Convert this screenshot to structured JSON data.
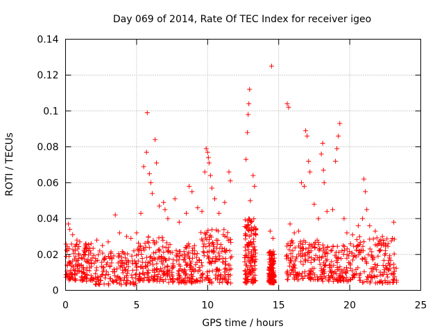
{
  "chart_data": {
    "type": "scatter",
    "title": "Day 069 of 2014, Rate Of TEC Index for receiver igeo",
    "xlabel": "GPS time / hours",
    "ylabel": "ROTI / TECUs",
    "xlim": [
      0,
      25
    ],
    "ylim": [
      0,
      0.14
    ],
    "xticks": [
      0,
      5,
      10,
      15,
      20,
      25
    ],
    "yticks": [
      0,
      0.02,
      0.04,
      0.06,
      0.08,
      0.1,
      0.12,
      0.14
    ],
    "xtick_labels": [
      "0",
      "5",
      "10",
      "15",
      "20",
      "25"
    ],
    "ytick_labels": [
      "0",
      "0.02",
      "0.04",
      "0.06",
      "0.08",
      "0.1",
      "0.12",
      "0.14"
    ],
    "grid": true,
    "marker": "+",
    "color": "#ff0000",
    "series": [
      {
        "name": "ROTI",
        "points": [
          [
            0.2,
            0.037
          ],
          [
            0.3,
            0.034
          ],
          [
            0.5,
            0.031
          ],
          [
            0.8,
            0.028
          ],
          [
            1.0,
            0.027
          ],
          [
            1.4,
            0.025
          ],
          [
            1.8,
            0.026
          ],
          [
            2.2,
            0.028
          ],
          [
            2.6,
            0.025
          ],
          [
            3.0,
            0.027
          ],
          [
            3.5,
            0.042
          ],
          [
            3.8,
            0.032
          ],
          [
            4.3,
            0.03
          ],
          [
            4.6,
            0.029
          ],
          [
            5.0,
            0.032
          ],
          [
            5.3,
            0.043
          ],
          [
            5.5,
            0.069
          ],
          [
            5.7,
            0.077
          ],
          [
            5.75,
            0.099
          ],
          [
            5.9,
            0.065
          ],
          [
            6.0,
            0.06
          ],
          [
            6.1,
            0.054
          ],
          [
            6.3,
            0.084
          ],
          [
            6.4,
            0.071
          ],
          [
            6.6,
            0.047
          ],
          [
            6.9,
            0.049
          ],
          [
            7.0,
            0.045
          ],
          [
            7.2,
            0.04
          ],
          [
            7.7,
            0.051
          ],
          [
            8.0,
            0.038
          ],
          [
            8.5,
            0.043
          ],
          [
            8.7,
            0.058
          ],
          [
            8.9,
            0.055
          ],
          [
            9.3,
            0.046
          ],
          [
            9.6,
            0.044
          ],
          [
            9.8,
            0.066
          ],
          [
            9.9,
            0.079
          ],
          [
            10.0,
            0.077
          ],
          [
            10.05,
            0.074
          ],
          [
            10.1,
            0.071
          ],
          [
            10.2,
            0.064
          ],
          [
            10.3,
            0.057
          ],
          [
            10.5,
            0.051
          ],
          [
            10.8,
            0.043
          ],
          [
            11.2,
            0.049
          ],
          [
            11.5,
            0.066
          ],
          [
            11.6,
            0.061
          ],
          [
            12.7,
            0.073
          ],
          [
            12.8,
            0.088
          ],
          [
            12.85,
            0.098
          ],
          [
            12.9,
            0.104
          ],
          [
            12.95,
            0.112
          ],
          [
            13.0,
            0.05
          ],
          [
            13.2,
            0.064
          ],
          [
            13.3,
            0.058
          ],
          [
            14.4,
            0.033
          ],
          [
            14.5,
            0.125
          ],
          [
            14.6,
            0.029
          ],
          [
            15.6,
            0.104
          ],
          [
            15.7,
            0.102
          ],
          [
            15.8,
            0.037
          ],
          [
            16.1,
            0.032
          ],
          [
            16.4,
            0.033
          ],
          [
            16.6,
            0.06
          ],
          [
            16.8,
            0.058
          ],
          [
            16.9,
            0.089
          ],
          [
            17.0,
            0.086
          ],
          [
            17.1,
            0.072
          ],
          [
            17.2,
            0.066
          ],
          [
            17.5,
            0.048
          ],
          [
            17.8,
            0.04
          ],
          [
            18.0,
            0.076
          ],
          [
            18.1,
            0.082
          ],
          [
            18.15,
            0.067
          ],
          [
            18.2,
            0.06
          ],
          [
            18.4,
            0.044
          ],
          [
            18.8,
            0.045
          ],
          [
            19.0,
            0.072
          ],
          [
            19.1,
            0.079
          ],
          [
            19.2,
            0.086
          ],
          [
            19.3,
            0.093
          ],
          [
            19.6,
            0.04
          ],
          [
            19.8,
            0.032
          ],
          [
            20.2,
            0.031
          ],
          [
            20.6,
            0.036
          ],
          [
            20.9,
            0.04
          ],
          [
            21.0,
            0.062
          ],
          [
            21.1,
            0.055
          ],
          [
            21.2,
            0.045
          ],
          [
            21.4,
            0.036
          ],
          [
            21.8,
            0.033
          ],
          [
            22.3,
            0.03
          ],
          [
            22.7,
            0.026
          ],
          [
            23.0,
            0.029
          ],
          [
            23.1,
            0.038
          ]
        ]
      }
    ],
    "dense_band": {
      "description": "dense cluster of ROTI values across the day",
      "segments": [
        {
          "x": [
            0.0,
            2.0
          ],
          "y": [
            0.005,
            0.026
          ]
        },
        {
          "x": [
            2.0,
            5.0
          ],
          "y": [
            0.003,
            0.022
          ]
        },
        {
          "x": [
            5.0,
            7.2
          ],
          "y": [
            0.005,
            0.03
          ]
        },
        {
          "x": [
            7.2,
            9.5
          ],
          "y": [
            0.004,
            0.026
          ]
        },
        {
          "x": [
            9.5,
            11.7
          ],
          "y": [
            0.004,
            0.034
          ]
        },
        {
          "x": [
            12.6,
            13.4
          ],
          "y": [
            0.004,
            0.04
          ]
        },
        {
          "x": [
            14.3,
            14.7
          ],
          "y": [
            0.004,
            0.022
          ]
        },
        {
          "x": [
            15.5,
            18.0
          ],
          "y": [
            0.006,
            0.028
          ]
        },
        {
          "x": [
            18.0,
            20.5
          ],
          "y": [
            0.005,
            0.026
          ]
        },
        {
          "x": [
            20.5,
            23.3
          ],
          "y": [
            0.004,
            0.03
          ]
        }
      ],
      "count": 1400
    }
  }
}
